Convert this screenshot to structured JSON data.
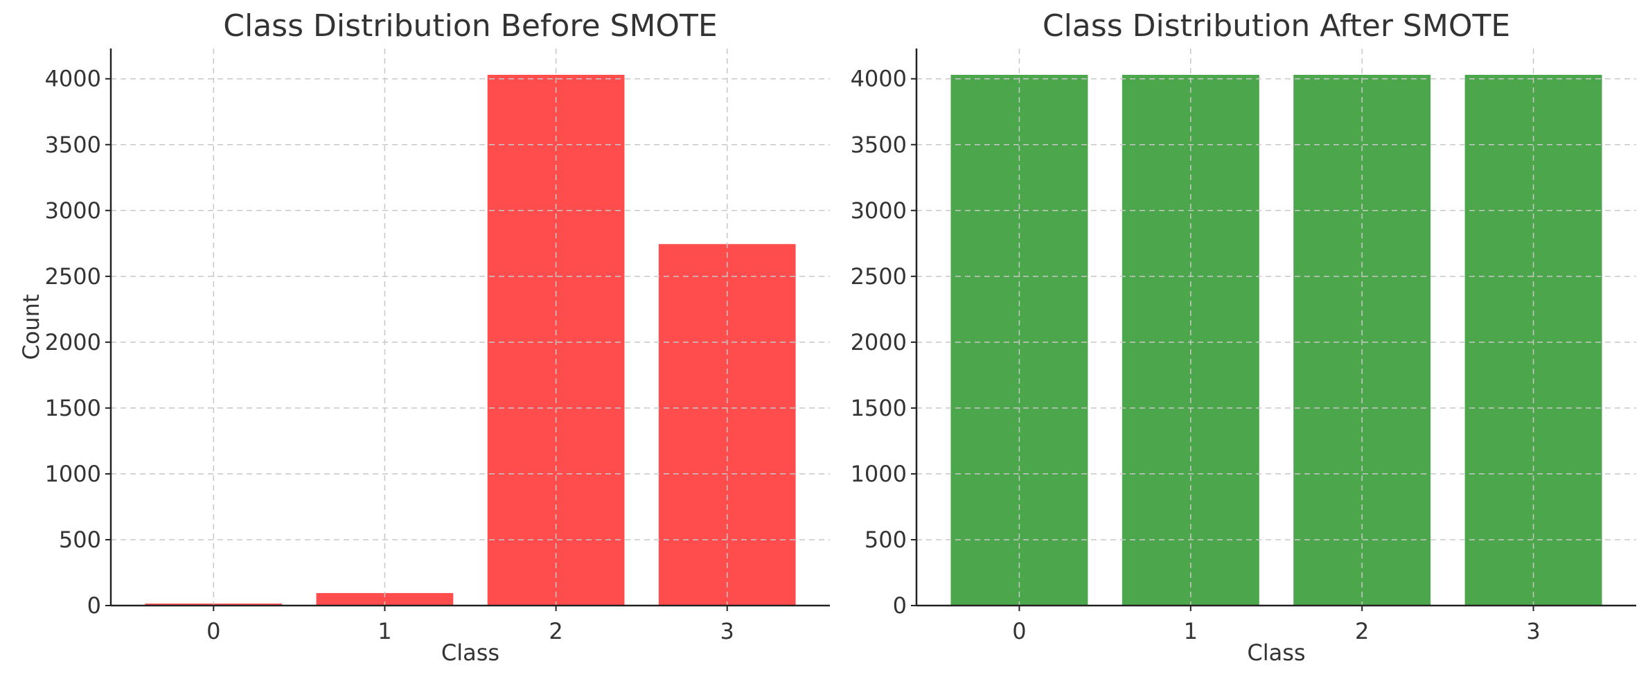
{
  "chart_data": [
    {
      "type": "bar",
      "title": "Class Distribution Before SMOTE",
      "xlabel": "Class",
      "ylabel": "Count",
      "categories": [
        "0",
        "1",
        "2",
        "3"
      ],
      "values": [
        15,
        95,
        4030,
        2745
      ],
      "ylim": [
        0,
        4230
      ],
      "yticks": [
        0,
        500,
        1000,
        1500,
        2000,
        2500,
        3000,
        3500,
        4000
      ],
      "color": "#ff4c4c",
      "grid": true
    },
    {
      "type": "bar",
      "title": "Class Distribution After SMOTE",
      "xlabel": "Class",
      "ylabel": "",
      "categories": [
        "0",
        "1",
        "2",
        "3"
      ],
      "values": [
        4030,
        4030,
        4030,
        4030
      ],
      "ylim": [
        0,
        4230
      ],
      "yticks": [
        0,
        500,
        1000,
        1500,
        2000,
        2500,
        3000,
        3500,
        4000
      ],
      "color": "#4ca64c",
      "grid": true
    }
  ]
}
